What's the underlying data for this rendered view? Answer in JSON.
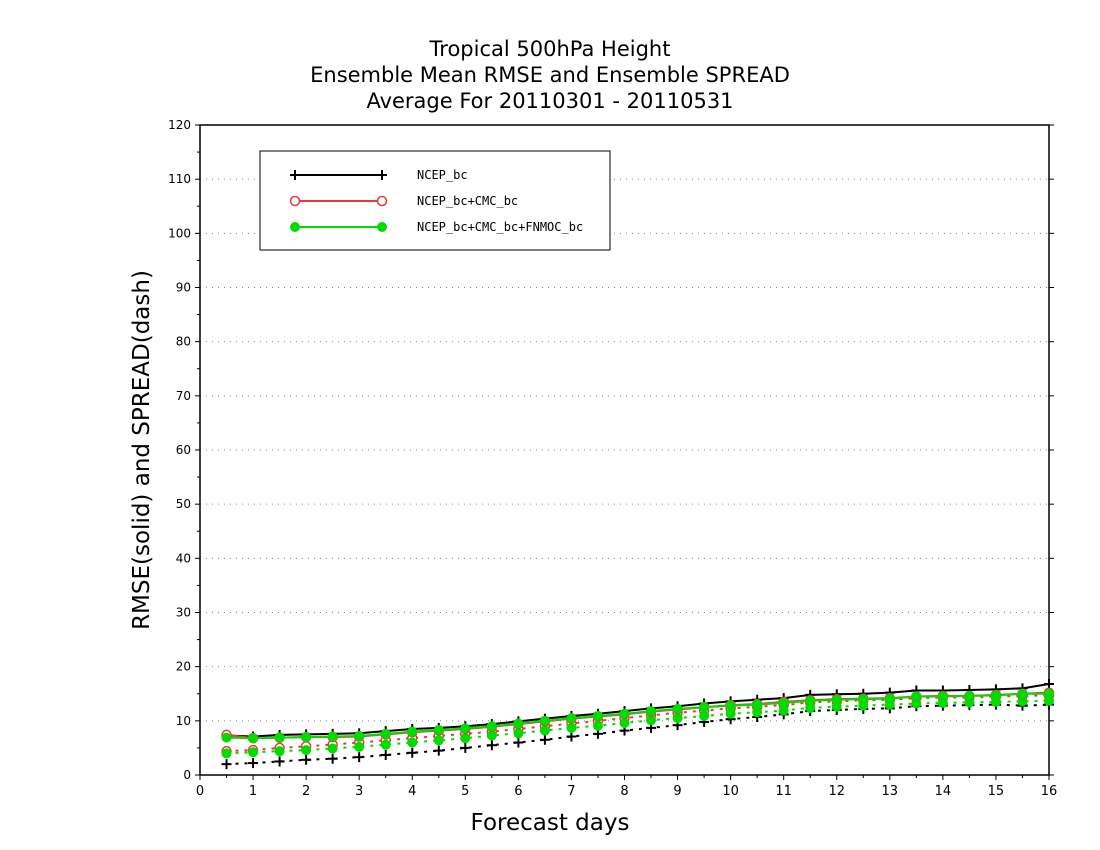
{
  "chart_data": {
    "type": "line",
    "title": [
      "Tropical 500hPa Height",
      "Ensemble Mean RMSE and Ensemble SPREAD",
      "Average For 20110301 - 20110531"
    ],
    "xlabel": "Forecast days",
    "ylabel": "RMSE(solid) and SPREAD(dash)",
    "xlim": [
      0,
      16
    ],
    "ylim": [
      0,
      120
    ],
    "xticks": [
      "0",
      "1",
      "2",
      "3",
      "4",
      "5",
      "6",
      "7",
      "8",
      "9",
      "10",
      "11",
      "12",
      "13",
      "14",
      "15",
      "16"
    ],
    "yticks": [
      "0",
      "10",
      "20",
      "30",
      "40",
      "50",
      "60",
      "70",
      "80",
      "90",
      "100",
      "110",
      "120"
    ],
    "grid": "horizontal dotted",
    "legend_position": "top-left",
    "x": [
      0.5,
      1,
      1.5,
      2,
      2.5,
      3,
      3.5,
      4,
      4.5,
      5,
      5.5,
      6,
      6.5,
      7,
      7.5,
      8,
      8.5,
      9,
      9.5,
      10,
      10.5,
      11,
      11.5,
      12,
      12.5,
      13,
      13.5,
      14,
      14.5,
      15,
      15.5,
      16
    ],
    "series": [
      {
        "name": "NCEP_bc",
        "color": "#000000",
        "marker": "plus",
        "rmse": [
          7.3,
          7.1,
          7.4,
          7.5,
          7.6,
          7.7,
          8.1,
          8.5,
          8.7,
          9.0,
          9.4,
          9.9,
          10.4,
          10.9,
          11.3,
          11.8,
          12.3,
          12.7,
          13.2,
          13.6,
          13.9,
          14.2,
          14.8,
          14.9,
          15.0,
          15.2,
          15.6,
          15.6,
          15.7,
          15.8,
          16.0,
          16.8
        ],
        "spread": [
          2.0,
          2.2,
          2.5,
          2.8,
          3.0,
          3.3,
          3.7,
          4.1,
          4.5,
          5.0,
          5.5,
          6.0,
          6.5,
          7.1,
          7.6,
          8.2,
          8.7,
          9.2,
          9.8,
          10.3,
          10.7,
          11.2,
          11.8,
          12.0,
          12.2,
          12.3,
          12.7,
          12.8,
          12.9,
          13.0,
          12.8,
          13.0
        ]
      },
      {
        "name": "NCEP_bc+CMC_bc",
        "color": "#e8383a",
        "marker": "open-circle",
        "rmse": [
          7.4,
          6.8,
          6.9,
          7.0,
          7.0,
          7.1,
          7.5,
          7.9,
          8.2,
          8.5,
          8.9,
          9.4,
          9.9,
          10.4,
          10.8,
          11.2,
          11.7,
          12.1,
          12.5,
          12.9,
          13.1,
          13.5,
          13.8,
          14.0,
          14.1,
          14.2,
          14.5,
          14.6,
          14.6,
          14.8,
          15.0,
          15.2
        ],
        "spread": [
          4.4,
          4.6,
          5.0,
          5.3,
          5.6,
          6.0,
          6.4,
          6.8,
          7.2,
          7.6,
          8.0,
          8.5,
          9.0,
          9.5,
          10.0,
          10.5,
          11.0,
          11.5,
          11.9,
          12.3,
          12.6,
          12.9,
          13.4,
          13.6,
          13.8,
          13.9,
          14.2,
          14.3,
          14.3,
          14.5,
          14.6,
          14.7
        ]
      },
      {
        "name": "NCEP_bc+CMC_bc+FNMOC_bc",
        "color": "#00dc00",
        "marker": "filled-circle",
        "rmse": [
          6.9,
          6.8,
          6.9,
          7.0,
          7.1,
          7.2,
          7.6,
          8.0,
          8.3,
          8.6,
          9.0,
          9.5,
          10.0,
          10.5,
          10.9,
          11.3,
          11.8,
          12.2,
          12.5,
          12.8,
          13.0,
          13.3,
          13.7,
          13.9,
          14.0,
          14.1,
          14.5,
          14.5,
          14.6,
          14.7,
          15.0,
          15.0
        ],
        "spread": [
          4.0,
          4.2,
          4.4,
          4.6,
          4.9,
          5.2,
          5.6,
          6.0,
          6.4,
          6.8,
          7.3,
          7.7,
          8.2,
          8.7,
          9.1,
          9.6,
          10.1,
          10.5,
          10.9,
          11.3,
          11.6,
          11.9,
          12.4,
          12.6,
          12.8,
          13.0,
          13.2,
          13.3,
          13.4,
          13.5,
          13.6,
          13.7
        ]
      }
    ]
  }
}
